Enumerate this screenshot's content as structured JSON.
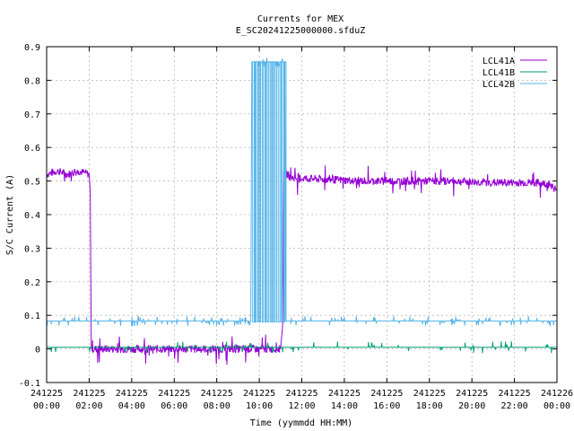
{
  "chart_data": {
    "type": "line",
    "title": "Currents for MEX",
    "subtitle": "E_SC20241225000000.sfduZ",
    "xlabel": "Time (yymmdd HH:MM)",
    "ylabel": "S/C Current (A)",
    "ylim": [
      -0.1,
      0.9
    ],
    "xlim": [
      0,
      24
    ],
    "x_unit": "hours from 241225 00:00",
    "y_ticks": [
      "-0.1",
      "0",
      "0.1",
      "0.2",
      "0.3",
      "0.4",
      "0.5",
      "0.6",
      "0.7",
      "0.8",
      "0.9"
    ],
    "x_ticks": [
      {
        "date": "241225",
        "time": "00:00"
      },
      {
        "date": "241225",
        "time": "02:00"
      },
      {
        "date": "241225",
        "time": "04:00"
      },
      {
        "date": "241225",
        "time": "06:00"
      },
      {
        "date": "241225",
        "time": "08:00"
      },
      {
        "date": "241225",
        "time": "10:00"
      },
      {
        "date": "241225",
        "time": "12:00"
      },
      {
        "date": "241225",
        "time": "14:00"
      },
      {
        "date": "241225",
        "time": "16:00"
      },
      {
        "date": "241225",
        "time": "18:00"
      },
      {
        "date": "241225",
        "time": "20:00"
      },
      {
        "date": "241225",
        "time": "22:00"
      },
      {
        "date": "241226",
        "time": "00:00"
      }
    ],
    "grid": true,
    "legend_position": "top-right",
    "series": [
      {
        "name": "LCL41A",
        "color": "#9400d3",
        "points": [
          [
            0.0,
            0.52
          ],
          [
            0.5,
            0.53
          ],
          [
            1.0,
            0.52
          ],
          [
            1.5,
            0.53
          ],
          [
            2.0,
            0.52
          ],
          [
            2.05,
            0.47
          ],
          [
            2.1,
            0.0
          ],
          [
            3.0,
            0.0
          ],
          [
            6.0,
            0.0
          ],
          [
            9.0,
            0.0
          ],
          [
            10.0,
            0.0
          ],
          [
            11.0,
            0.0
          ],
          [
            11.1,
            0.07
          ],
          [
            11.15,
            0.53
          ],
          [
            11.5,
            0.51
          ],
          [
            13.0,
            0.505
          ],
          [
            15.0,
            0.5
          ],
          [
            17.0,
            0.5
          ],
          [
            19.0,
            0.5
          ],
          [
            21.0,
            0.495
          ],
          [
            23.0,
            0.495
          ],
          [
            23.7,
            0.49
          ],
          [
            24.0,
            0.47
          ]
        ]
      },
      {
        "name": "LCL41B",
        "color": "#009e73",
        "points": [
          [
            0.0,
            0.005
          ],
          [
            6.0,
            0.005
          ],
          [
            12.0,
            0.005
          ],
          [
            18.0,
            0.005
          ],
          [
            24.0,
            0.005
          ]
        ]
      },
      {
        "name": "LCL42B",
        "color": "#56b4e9",
        "points": [
          [
            0.0,
            0.083
          ],
          [
            2.0,
            0.083
          ],
          [
            6.0,
            0.083
          ],
          [
            9.6,
            0.083
          ],
          [
            9.65,
            0.855
          ],
          [
            11.2,
            0.855
          ],
          [
            11.25,
            0.083
          ],
          [
            15.0,
            0.083
          ],
          [
            20.0,
            0.083
          ],
          [
            24.0,
            0.083
          ]
        ]
      }
    ]
  }
}
